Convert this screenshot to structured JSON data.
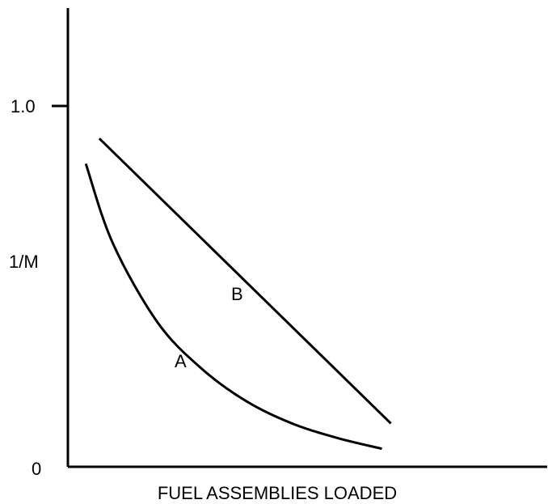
{
  "chart_data": {
    "type": "line",
    "title": "",
    "xlabel": "FUEL ASSEMBLIES LOADED",
    "ylabel": "1/M",
    "y_ticks": [
      {
        "value": 0,
        "label": "0"
      },
      {
        "value": 1.0,
        "label": "1.0"
      }
    ],
    "xlim": [
      0,
      1
    ],
    "ylim": [
      0,
      1.27
    ],
    "grid": false,
    "series": [
      {
        "name": "A",
        "x": [
          0.04,
          0.1,
          0.2,
          0.3,
          0.4,
          0.5,
          0.6,
          0.7
        ],
        "y": [
          0.84,
          0.62,
          0.4,
          0.27,
          0.18,
          0.12,
          0.08,
          0.05
        ]
      },
      {
        "name": "B",
        "x": [
          0.07,
          0.72
        ],
        "y": [
          0.91,
          0.12
        ]
      }
    ],
    "colors": {
      "line": "#000000",
      "background": "#ffffff"
    }
  }
}
